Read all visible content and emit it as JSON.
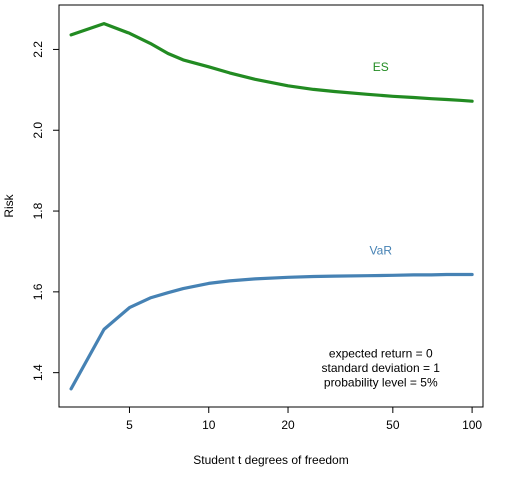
{
  "chart_data": {
    "type": "line",
    "title": "",
    "xlabel": "Student t degrees of freedom",
    "ylabel": "Risk",
    "x_scale": "log",
    "xlim": [
      2.7,
      110
    ],
    "ylim": [
      1.315,
      2.31
    ],
    "x_ticks": [
      5,
      10,
      20,
      50,
      100
    ],
    "y_ticks": [
      1.4,
      1.6,
      1.8,
      2.0,
      2.2
    ],
    "grid": false,
    "series": [
      {
        "name": "ES",
        "color": "#228B22",
        "x": [
          3,
          4,
          5,
          6,
          7,
          8,
          10,
          12,
          15,
          20,
          25,
          30,
          40,
          50,
          60,
          70,
          80,
          90,
          100
        ],
        "values": [
          2.236,
          2.264,
          2.24,
          2.215,
          2.19,
          2.174,
          2.157,
          2.142,
          2.126,
          2.11,
          2.101,
          2.096,
          2.089,
          2.084,
          2.081,
          2.078,
          2.076,
          2.074,
          2.072
        ]
      },
      {
        "name": "VaR",
        "color": "#4682B4",
        "x": [
          3,
          4,
          5,
          6,
          7,
          8,
          10,
          12,
          15,
          20,
          25,
          30,
          40,
          50,
          60,
          70,
          80,
          90,
          100
        ],
        "values": [
          1.36,
          1.507,
          1.561,
          1.585,
          1.598,
          1.608,
          1.621,
          1.627,
          1.632,
          1.636,
          1.638,
          1.639,
          1.64,
          1.641,
          1.642,
          1.642,
          1.643,
          1.643,
          1.643
        ]
      }
    ],
    "series_labels": [
      {
        "text": "ES",
        "x": 45,
        "y": 2.147
      },
      {
        "text": "VaR",
        "x": 45,
        "y": 1.692
      }
    ],
    "annotation": {
      "lines": [
        "expected return = 0",
        "standard deviation = 1",
        "probability level = 5%"
      ],
      "anchor_x": 45,
      "anchor_y": 1.437
    }
  }
}
